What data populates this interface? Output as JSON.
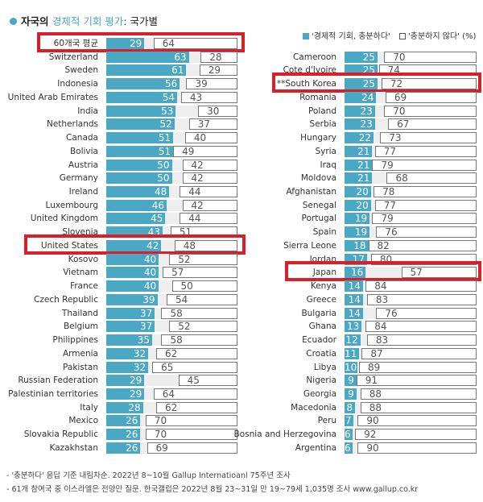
{
  "title": {
    "prefix": "자국의 ",
    "highlight": "경제적 기회 평가",
    "suffix": ": 국가별"
  },
  "chart_data": {
    "type": "bar",
    "title": "자국의 경제적 기회 평가: 국가별",
    "unit": "%",
    "legend": {
      "sufficient": "'경제적 기회, 충분하다'",
      "insufficient": "'충분하지 않다'",
      "unit_label": "(%)",
      "placement": "top-right"
    },
    "colors": {
      "sufficient": "#4aa8c4",
      "insufficient": "#ffffff",
      "highlight": "#d8202a"
    },
    "left": [
      {
        "name": "60개국 평균",
        "sufficient": 29,
        "insufficient": 64,
        "highlight": true
      },
      {
        "name": "Switzerland",
        "sufficient": 63,
        "insufficient": 28
      },
      {
        "name": "Sweden",
        "sufficient": 61,
        "insufficient": 29
      },
      {
        "name": "Indonesia",
        "sufficient": 56,
        "insufficient": 39
      },
      {
        "name": "United Arab Emirates",
        "sufficient": 54,
        "insufficient": 43
      },
      {
        "name": "India",
        "sufficient": 53,
        "insufficient": 30
      },
      {
        "name": "Netherlands",
        "sufficient": 52,
        "insufficient": 37
      },
      {
        "name": "Canada",
        "sufficient": 51,
        "insufficient": 40
      },
      {
        "name": "Bolivia",
        "sufficient": 51,
        "insufficient": 49
      },
      {
        "name": "Austria",
        "sufficient": 50,
        "insufficient": 42
      },
      {
        "name": "Germany",
        "sufficient": 50,
        "insufficient": 42
      },
      {
        "name": "Ireland",
        "sufficient": 48,
        "insufficient": 44
      },
      {
        "name": "Luxembourg",
        "sufficient": 46,
        "insufficient": 42
      },
      {
        "name": "United Kingdom",
        "sufficient": 45,
        "insufficient": 44
      },
      {
        "name": "Slovenia",
        "sufficient": 43,
        "insufficient": 51
      },
      {
        "name": "United States",
        "sufficient": 42,
        "insufficient": 48,
        "highlight": true
      },
      {
        "name": "Kosovo",
        "sufficient": 40,
        "insufficient": 52
      },
      {
        "name": "Vietnam",
        "sufficient": 40,
        "insufficient": 57
      },
      {
        "name": "France",
        "sufficient": 40,
        "insufficient": 50
      },
      {
        "name": "Czech Republic",
        "sufficient": 39,
        "insufficient": 54
      },
      {
        "name": "Thailand",
        "sufficient": 37,
        "insufficient": 58
      },
      {
        "name": "Belgium",
        "sufficient": 37,
        "insufficient": 52
      },
      {
        "name": "Philippines",
        "sufficient": 35,
        "insufficient": 58
      },
      {
        "name": "Armenia",
        "sufficient": 32,
        "insufficient": 62
      },
      {
        "name": "Pakistan",
        "sufficient": 32,
        "insufficient": 65
      },
      {
        "name": "Russian Federation",
        "sufficient": 29,
        "insufficient": 45
      },
      {
        "name": "Palestinian territories",
        "sufficient": 29,
        "insufficient": 64
      },
      {
        "name": "Italy",
        "sufficient": 28,
        "insufficient": 62
      },
      {
        "name": "Mexico",
        "sufficient": 26,
        "insufficient": 70
      },
      {
        "name": "Slovakia Republic",
        "sufficient": 26,
        "insufficient": 70
      },
      {
        "name": "Kazakhstan",
        "sufficient": 26,
        "insufficient": 69
      }
    ],
    "right": [
      {
        "name": "Cameroon",
        "sufficient": 25,
        "insufficient": 70
      },
      {
        "name": "Cote d'Ivoire",
        "sufficient": 25,
        "insufficient": 74
      },
      {
        "name": "**South Korea",
        "sufficient": 25,
        "insufficient": 72,
        "highlight": true
      },
      {
        "name": "Romania",
        "sufficient": 24,
        "insufficient": 69
      },
      {
        "name": "Poland",
        "sufficient": 23,
        "insufficient": 70
      },
      {
        "name": "Serbia",
        "sufficient": 23,
        "insufficient": 67
      },
      {
        "name": "Hungary",
        "sufficient": 22,
        "insufficient": 73
      },
      {
        "name": "Syria",
        "sufficient": 21,
        "insufficient": 77
      },
      {
        "name": "Iraq",
        "sufficient": 21,
        "insufficient": 79
      },
      {
        "name": "Moldova",
        "sufficient": 21,
        "insufficient": 68
      },
      {
        "name": "Afghanistan",
        "sufficient": 20,
        "insufficient": 78
      },
      {
        "name": "Senegal",
        "sufficient": 20,
        "insufficient": 77
      },
      {
        "name": "Portugal",
        "sufficient": 19,
        "insufficient": 79
      },
      {
        "name": "Spain",
        "sufficient": 19,
        "insufficient": 76
      },
      {
        "name": "Sierra Leone",
        "sufficient": 18,
        "insufficient": 82
      },
      {
        "name": "Jordan",
        "sufficient": 17,
        "insufficient": 80
      },
      {
        "name": "Japan",
        "sufficient": 16,
        "insufficient": 57,
        "highlight": true
      },
      {
        "name": "Kenya",
        "sufficient": 14,
        "insufficient": 84
      },
      {
        "name": "Greece",
        "sufficient": 14,
        "insufficient": 83
      },
      {
        "name": "Bulgaria",
        "sufficient": 14,
        "insufficient": 76
      },
      {
        "name": "Ghana",
        "sufficient": 13,
        "insufficient": 84
      },
      {
        "name": "Ecuador",
        "sufficient": 12,
        "insufficient": 83
      },
      {
        "name": "Croatia",
        "sufficient": 11,
        "insufficient": 87
      },
      {
        "name": "Libya",
        "sufficient": 10,
        "insufficient": 89
      },
      {
        "name": "Nigeria",
        "sufficient": 9,
        "insufficient": 91
      },
      {
        "name": "Georgia",
        "sufficient": 9,
        "insufficient": 88
      },
      {
        "name": "Macedonia",
        "sufficient": 8,
        "insufficient": 88
      },
      {
        "name": "Peru",
        "sufficient": 7,
        "insufficient": 90
      },
      {
        "name": "Bosnia and Herzegovina",
        "sufficient": 6,
        "insufficient": 92
      },
      {
        "name": "Argentina",
        "sufficient": 6,
        "insufficient": 90
      }
    ],
    "xlim": [
      0,
      100
    ]
  },
  "notes": [
    "- '충분하다' 응답 기준 내림차순. 2022년 8~10월 Gallup Internatioanl 75주년 조사",
    "- 61개 참여국 중 이스라엘은 전망만 질문. 한국갤럽은 2022년 8월 23~31일 만 19~79세 1,035명 조사 www.gallup.co.kr"
  ]
}
